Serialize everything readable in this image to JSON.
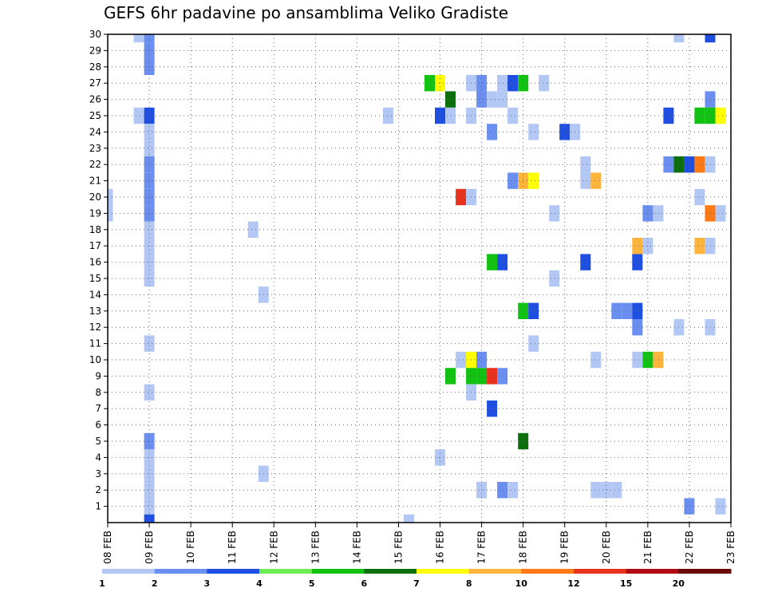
{
  "chart_data": {
    "type": "heatmap",
    "title": "GEFS 6hr padavine po ansamblima Veliko Gradiste",
    "xlabel": "",
    "ylabel": "",
    "x_ticks": [
      "08 FEB",
      "09 FEB",
      "10 FEB",
      "11 FEB",
      "12 FEB",
      "13 FEB",
      "14 FEB",
      "15 FEB",
      "16 FEB",
      "17 FEB",
      "18 FEB",
      "19 FEB",
      "20 FEB",
      "21 FEB",
      "22 FEB",
      "23 FEB"
    ],
    "x_range_days": [
      0,
      15
    ],
    "y_ticks": [
      1,
      2,
      3,
      4,
      5,
      6,
      7,
      8,
      9,
      10,
      11,
      12,
      13,
      14,
      15,
      16,
      17,
      18,
      19,
      20,
      21,
      22,
      23,
      24,
      25,
      26,
      27,
      28,
      29,
      30
    ],
    "ylim": [
      0,
      30
    ],
    "grid": true,
    "colorbar": {
      "labels": [
        "1",
        "2",
        "3",
        "4",
        "5",
        "6",
        "7",
        "8",
        "10",
        "12",
        "15",
        "20"
      ],
      "colors": [
        "#b3c7f5",
        "#6b8ff0",
        "#1f4fe0",
        "#6fec4f",
        "#12c212",
        "#0b700b",
        "#ffff00",
        "#ffb43c",
        "#ff7a14",
        "#e8321e",
        "#b00a12",
        "#6a0608"
      ]
    },
    "cells": [
      {
        "t": 0.75,
        "member": 30,
        "value": 1
      },
      {
        "t": 1.0,
        "member": 30,
        "value": 2
      },
      {
        "t": 1.0,
        "member": 29,
        "value": 2
      },
      {
        "t": 1.0,
        "member": 28,
        "value": 2
      },
      {
        "t": 0.75,
        "member": 25,
        "value": 1
      },
      {
        "t": 1.0,
        "member": 25,
        "value": 3
      },
      {
        "t": 1.0,
        "member": 24,
        "value": 1
      },
      {
        "t": 1.0,
        "member": 23,
        "value": 1
      },
      {
        "t": 1.0,
        "member": 22,
        "value": 2
      },
      {
        "t": 1.0,
        "member": 21,
        "value": 2
      },
      {
        "t": 1.0,
        "member": 20,
        "value": 2
      },
      {
        "t": 1.0,
        "member": 19,
        "value": 2
      },
      {
        "t": 0.0,
        "member": 19,
        "value": 1
      },
      {
        "t": 0.0,
        "member": 20,
        "value": 1
      },
      {
        "t": 1.0,
        "member": 18,
        "value": 1
      },
      {
        "t": 1.0,
        "member": 17,
        "value": 1
      },
      {
        "t": 1.0,
        "member": 16,
        "value": 1
      },
      {
        "t": 1.0,
        "member": 15,
        "value": 1
      },
      {
        "t": 1.0,
        "member": 11,
        "value": 1
      },
      {
        "t": 1.0,
        "member": 8,
        "value": 1
      },
      {
        "t": 1.0,
        "member": 5,
        "value": 2
      },
      {
        "t": 1.0,
        "member": 4,
        "value": 1
      },
      {
        "t": 1.0,
        "member": 3,
        "value": 1
      },
      {
        "t": 1.0,
        "member": 2,
        "value": 1
      },
      {
        "t": 1.0,
        "member": 1,
        "value": 1
      },
      {
        "t": 1.0,
        "member": 0,
        "value": 3
      },
      {
        "t": 3.5,
        "member": 18,
        "value": 1
      },
      {
        "t": 3.75,
        "member": 14,
        "value": 1
      },
      {
        "t": 3.75,
        "member": 3,
        "value": 1
      },
      {
        "t": 6.75,
        "member": 25,
        "value": 1
      },
      {
        "t": 7.25,
        "member": 0,
        "value": 1
      },
      {
        "t": 7.75,
        "member": 27,
        "value": 5
      },
      {
        "t": 8.0,
        "member": 27,
        "value": 7
      },
      {
        "t": 8.0,
        "member": 25,
        "value": 3
      },
      {
        "t": 8.25,
        "member": 25,
        "value": 1
      },
      {
        "t": 8.25,
        "member": 26,
        "value": 6
      },
      {
        "t": 8.5,
        "member": 20,
        "value": 12
      },
      {
        "t": 8.75,
        "member": 20,
        "value": 1
      },
      {
        "t": 8.0,
        "member": 4,
        "value": 1
      },
      {
        "t": 8.25,
        "member": 9,
        "value": 5
      },
      {
        "t": 8.5,
        "member": 10,
        "value": 1
      },
      {
        "t": 8.75,
        "member": 10,
        "value": 7
      },
      {
        "t": 9.0,
        "member": 10,
        "value": 2
      },
      {
        "t": 8.75,
        "member": 9,
        "value": 5
      },
      {
        "t": 9.0,
        "member": 9,
        "value": 5
      },
      {
        "t": 9.25,
        "member": 9,
        "value": 12
      },
      {
        "t": 9.5,
        "member": 9,
        "value": 2
      },
      {
        "t": 8.75,
        "member": 8,
        "value": 1
      },
      {
        "t": 9.25,
        "member": 7,
        "value": 3
      },
      {
        "t": 8.75,
        "member": 27,
        "value": 1
      },
      {
        "t": 9.0,
        "member": 27,
        "value": 2
      },
      {
        "t": 9.0,
        "member": 26,
        "value": 2
      },
      {
        "t": 9.25,
        "member": 26,
        "value": 1
      },
      {
        "t": 9.5,
        "member": 26,
        "value": 1
      },
      {
        "t": 9.5,
        "member": 27,
        "value": 1
      },
      {
        "t": 8.75,
        "member": 25,
        "value": 1
      },
      {
        "t": 9.25,
        "member": 24,
        "value": 2
      },
      {
        "t": 9.25,
        "member": 16,
        "value": 5
      },
      {
        "t": 9.5,
        "member": 16,
        "value": 3
      },
      {
        "t": 9.0,
        "member": 2,
        "value": 1
      },
      {
        "t": 9.5,
        "member": 2,
        "value": 2
      },
      {
        "t": 9.75,
        "member": 2,
        "value": 1
      },
      {
        "t": 9.75,
        "member": 27,
        "value": 3
      },
      {
        "t": 10.0,
        "member": 27,
        "value": 5
      },
      {
        "t": 10.5,
        "member": 27,
        "value": 1
      },
      {
        "t": 9.75,
        "member": 25,
        "value": 1
      },
      {
        "t": 9.75,
        "member": 21,
        "value": 2
      },
      {
        "t": 10.0,
        "member": 21,
        "value": 8
      },
      {
        "t": 10.25,
        "member": 21,
        "value": 7
      },
      {
        "t": 10.0,
        "member": 13,
        "value": 5
      },
      {
        "t": 10.25,
        "member": 13,
        "value": 3
      },
      {
        "t": 10.25,
        "member": 11,
        "value": 1
      },
      {
        "t": 10.0,
        "member": 5,
        "value": 6
      },
      {
        "t": 10.25,
        "member": 24,
        "value": 1
      },
      {
        "t": 11.0,
        "member": 24,
        "value": 3
      },
      {
        "t": 11.25,
        "member": 24,
        "value": 1
      },
      {
        "t": 10.75,
        "member": 19,
        "value": 1
      },
      {
        "t": 10.75,
        "member": 15,
        "value": 1
      },
      {
        "t": 11.5,
        "member": 22,
        "value": 1
      },
      {
        "t": 11.5,
        "member": 21,
        "value": 1
      },
      {
        "t": 11.75,
        "member": 21,
        "value": 8
      },
      {
        "t": 11.5,
        "member": 16,
        "value": 3
      },
      {
        "t": 11.75,
        "member": 10,
        "value": 1
      },
      {
        "t": 11.75,
        "member": 2,
        "value": 1
      },
      {
        "t": 12.0,
        "member": 2,
        "value": 1
      },
      {
        "t": 12.25,
        "member": 2,
        "value": 1
      },
      {
        "t": 12.25,
        "member": 13,
        "value": 2
      },
      {
        "t": 12.5,
        "member": 13,
        "value": 2
      },
      {
        "t": 12.75,
        "member": 13,
        "value": 3
      },
      {
        "t": 12.75,
        "member": 12,
        "value": 2
      },
      {
        "t": 12.75,
        "member": 16,
        "value": 3
      },
      {
        "t": 12.75,
        "member": 17,
        "value": 8
      },
      {
        "t": 13.0,
        "member": 17,
        "value": 1
      },
      {
        "t": 12.75,
        "member": 10,
        "value": 1
      },
      {
        "t": 13.0,
        "member": 10,
        "value": 5
      },
      {
        "t": 13.25,
        "member": 10,
        "value": 8
      },
      {
        "t": 13.0,
        "member": 19,
        "value": 2
      },
      {
        "t": 13.25,
        "member": 19,
        "value": 1
      },
      {
        "t": 13.5,
        "member": 25,
        "value": 3
      },
      {
        "t": 13.5,
        "member": 22,
        "value": 2
      },
      {
        "t": 13.75,
        "member": 22,
        "value": 6
      },
      {
        "t": 14.0,
        "member": 22,
        "value": 3
      },
      {
        "t": 14.25,
        "member": 22,
        "value": 10
      },
      {
        "t": 14.5,
        "member": 22,
        "value": 1
      },
      {
        "t": 13.75,
        "member": 30,
        "value": 1
      },
      {
        "t": 14.5,
        "member": 30,
        "value": 3
      },
      {
        "t": 14.5,
        "member": 26,
        "value": 2
      },
      {
        "t": 14.25,
        "member": 25,
        "value": 5
      },
      {
        "t": 14.5,
        "member": 25,
        "value": 5
      },
      {
        "t": 14.75,
        "member": 25,
        "value": 7
      },
      {
        "t": 14.25,
        "member": 20,
        "value": 1
      },
      {
        "t": 14.5,
        "member": 19,
        "value": 10
      },
      {
        "t": 14.75,
        "member": 19,
        "value": 1
      },
      {
        "t": 14.25,
        "member": 17,
        "value": 8
      },
      {
        "t": 14.5,
        "member": 17,
        "value": 1
      },
      {
        "t": 13.75,
        "member": 12,
        "value": 1
      },
      {
        "t": 14.5,
        "member": 12,
        "value": 1
      },
      {
        "t": 14.0,
        "member": 1,
        "value": 2
      },
      {
        "t": 14.75,
        "member": 1,
        "value": 1
      }
    ]
  }
}
